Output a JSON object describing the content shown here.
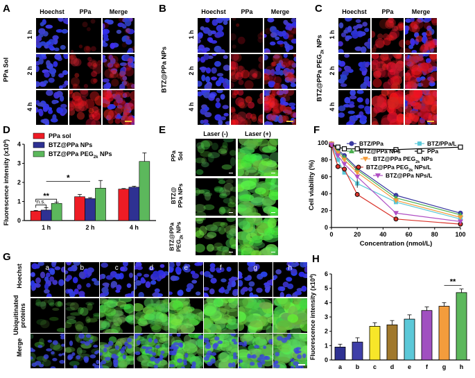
{
  "panels": {
    "A": {
      "letter": "A",
      "side": "PPa Sol",
      "cols": [
        "Hoechst",
        "PPa",
        "Merge"
      ],
      "rows": [
        "1 h",
        "2 h",
        "4 h"
      ]
    },
    "B": {
      "letter": "B",
      "side": "BTZ@PPa NPs",
      "cols": [
        "Hoechst",
        "PPa",
        "Merge"
      ],
      "rows": [
        "1 h",
        "2 h",
        "4 h"
      ]
    },
    "C": {
      "letter": "C",
      "side_main": "BTZ@PPa PEG",
      "side_sub": "2k",
      "side_tail": " NPs",
      "cols": [
        "Hoechst",
        "PPa",
        "Merge"
      ],
      "rows": [
        "1 h",
        "2 h",
        "4 h"
      ]
    },
    "E": {
      "letter": "E",
      "cols": [
        "Laser (-)",
        "Laser (+)"
      ],
      "rows": [
        {
          "main": "PPa",
          "sub": "",
          "line2": "Sol"
        },
        {
          "main": "BTZ@",
          "sub": "",
          "line2": "PPa NPs"
        },
        {
          "main": "BTZ@PPa",
          "sub": "2k",
          "line2": "PEG",
          "tail": " NPs"
        }
      ]
    },
    "G": {
      "letter": "G",
      "rows": [
        "Hoechst",
        "Ubiquitinated proteins",
        "Merge"
      ],
      "cols": [
        "a",
        "b",
        "c",
        "d",
        "e",
        "f",
        "g",
        "h"
      ]
    }
  },
  "chart_data": [
    {
      "id": "D",
      "letter": "D",
      "type": "bar",
      "ylabel_main": "Fluorescence intensity (x10",
      "ylabel_sup": "4",
      "ylabel_tail": ")",
      "ylim": [
        0,
        4
      ],
      "yticks": [
        0,
        1,
        2,
        3,
        4
      ],
      "categories": [
        "1 h",
        "2 h",
        "4 h"
      ],
      "series": [
        {
          "name": "PPa sol",
          "color": "#ee1c25",
          "values": [
            0.5,
            1.25,
            1.65
          ],
          "errors": [
            0.03,
            0.12,
            0.03
          ]
        },
        {
          "name": "BTZ@PPa NPs",
          "color": "#2e3192",
          "values": [
            0.55,
            1.15,
            1.75
          ],
          "errors": [
            0.12,
            0.05,
            0.05
          ]
        },
        {
          "name": "BTZ@PPa PEG",
          "name_sub": "2k",
          "name_tail": " NPs",
          "color": "#5cb85c",
          "values": [
            0.9,
            1.7,
            3.1
          ],
          "errors": [
            0.06,
            0.4,
            0.45
          ]
        }
      ],
      "annotations": [
        {
          "text": "**",
          "between": [
            0,
            2
          ],
          "category": 0,
          "y": 1.12
        },
        {
          "text": "n.s.",
          "between": [
            0,
            1
          ],
          "category": 0,
          "y": 0.82
        },
        {
          "text": "*",
          "span_categories": [
            0,
            1
          ],
          "y": 2.05
        }
      ]
    },
    {
      "id": "F",
      "letter": "F",
      "type": "line",
      "xlabel": "Concentration (nmol/L)",
      "ylabel": "Cell viability (%)",
      "xlim": [
        0,
        100
      ],
      "ylim": [
        0,
        100
      ],
      "xticks": [
        0,
        20,
        40,
        60,
        80,
        100
      ],
      "yticks": [
        0,
        20,
        40,
        60,
        80,
        100
      ],
      "x": [
        0,
        5,
        10,
        20,
        50,
        100
      ],
      "series": [
        {
          "name": "BTZ/PPa",
          "color": "#3a3aa0",
          "marker": "circle",
          "values": [
            99,
            92,
            85,
            70,
            38,
            17
          ]
        },
        {
          "name": "BTZ/PPa/L",
          "color": "#5bc8d8",
          "marker": "square",
          "values": [
            98,
            80,
            65,
            52,
            30,
            10
          ]
        },
        {
          "name": "BTZ@PPa NPs",
          "color": "#4caf50",
          "marker": "triangle",
          "values": [
            99,
            90,
            83,
            68,
            35,
            15
          ]
        },
        {
          "name": "PPa",
          "color": "#c8b400",
          "marker": "square-open",
          "values": [
            98,
            95,
            93,
            93,
            92,
            95
          ]
        },
        {
          "name": "BTZ@PPa PEG",
          "name_sub": "2k",
          "name_tail": " NPs",
          "color": "#f39c3c",
          "marker": "triangle-down",
          "values": [
            99,
            88,
            80,
            65,
            32,
            12
          ]
        },
        {
          "name": "BTZ@PPa PEG",
          "name_sub": "2k",
          "name_tail": " NPs/L",
          "color": "#d9342b",
          "marker": "circle-dark",
          "values": [
            97,
            72,
            69,
            39,
            10,
            4
          ]
        },
        {
          "name": "BTZ@PPa NPs/L",
          "color": "#b04fc4",
          "marker": "triangle-down",
          "values": [
            98,
            85,
            75,
            60,
            17,
            7
          ]
        }
      ],
      "error_at": {
        "series_index": 1,
        "x": 20,
        "err": 5
      }
    },
    {
      "id": "H",
      "letter": "H",
      "type": "bar",
      "ylabel_main": "Fluorescence intensity (x10",
      "ylabel_sup": "4",
      "ylabel_tail": ")",
      "ylim": [
        0,
        6
      ],
      "yticks": [
        0,
        1,
        2,
        3,
        4,
        5,
        6
      ],
      "categories": [
        "a",
        "b",
        "c",
        "d",
        "e",
        "f",
        "g",
        "h"
      ],
      "values": [
        0.9,
        1.25,
        2.35,
        2.45,
        2.85,
        3.45,
        3.75,
        4.7
      ],
      "errors": [
        0.2,
        0.3,
        0.25,
        0.3,
        0.3,
        0.25,
        0.25,
        0.25
      ],
      "colors": [
        "#2e3192",
        "#3f3fa8",
        "#f7e629",
        "#a0782c",
        "#5bc8d8",
        "#a050c0",
        "#f39c3c",
        "#5cb85c"
      ],
      "annotations": [
        {
          "text": "**",
          "between": [
            6,
            7
          ],
          "y": 5.2
        }
      ]
    }
  ]
}
